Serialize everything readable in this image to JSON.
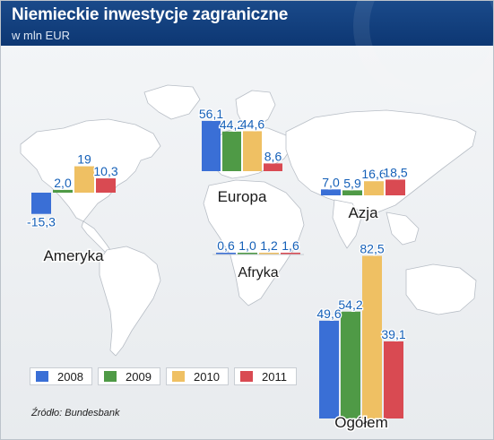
{
  "title": "Niemieckie inwestycje zagraniczne",
  "subtitle": "w mln EUR",
  "source": "Źródło: Bundesbank",
  "colors": {
    "header": "#0d3773",
    "value_label": "#1560b8",
    "map": "#ffffff",
    "2008": "#3a6fd6",
    "2009": "#4f9a46",
    "2010": "#efc063",
    "2011": "#d94a52"
  },
  "legend": [
    {
      "label": "2008",
      "color": "#3a6fd6"
    },
    {
      "label": "2009",
      "color": "#4f9a46"
    },
    {
      "label": "2010",
      "color": "#efc063"
    },
    {
      "label": "2011",
      "color": "#d94a52"
    }
  ],
  "chart_data": {
    "type": "bar",
    "series_names": [
      "2008",
      "2009",
      "2010",
      "2011"
    ],
    "groups": [
      {
        "name": "Ameryka",
        "values": [
          -15.3,
          2.0,
          19,
          10.3
        ],
        "labels": [
          "-15,3",
          "2,0",
          "19",
          "10,3"
        ]
      },
      {
        "name": "Europa",
        "values": [
          56.1,
          44.2,
          44.6,
          8.6
        ],
        "labels": [
          "56,1",
          "44,2",
          "44,6",
          "8,6"
        ]
      },
      {
        "name": "Azja",
        "values": [
          7.0,
          5.9,
          16.6,
          18.5
        ],
        "labels": [
          "7,0",
          "5,9",
          "16,6",
          "18,5"
        ]
      },
      {
        "name": "Afryka",
        "values": [
          0.6,
          1.0,
          1.2,
          1.6
        ],
        "labels": [
          "0,6",
          "1,0",
          "1,2",
          "1,6"
        ]
      },
      {
        "name": "Ogółem",
        "values": [
          49.6,
          54.2,
          82.5,
          39.1
        ],
        "labels": [
          "49,6",
          "54,2",
          "82,5",
          "39,1"
        ]
      }
    ]
  }
}
